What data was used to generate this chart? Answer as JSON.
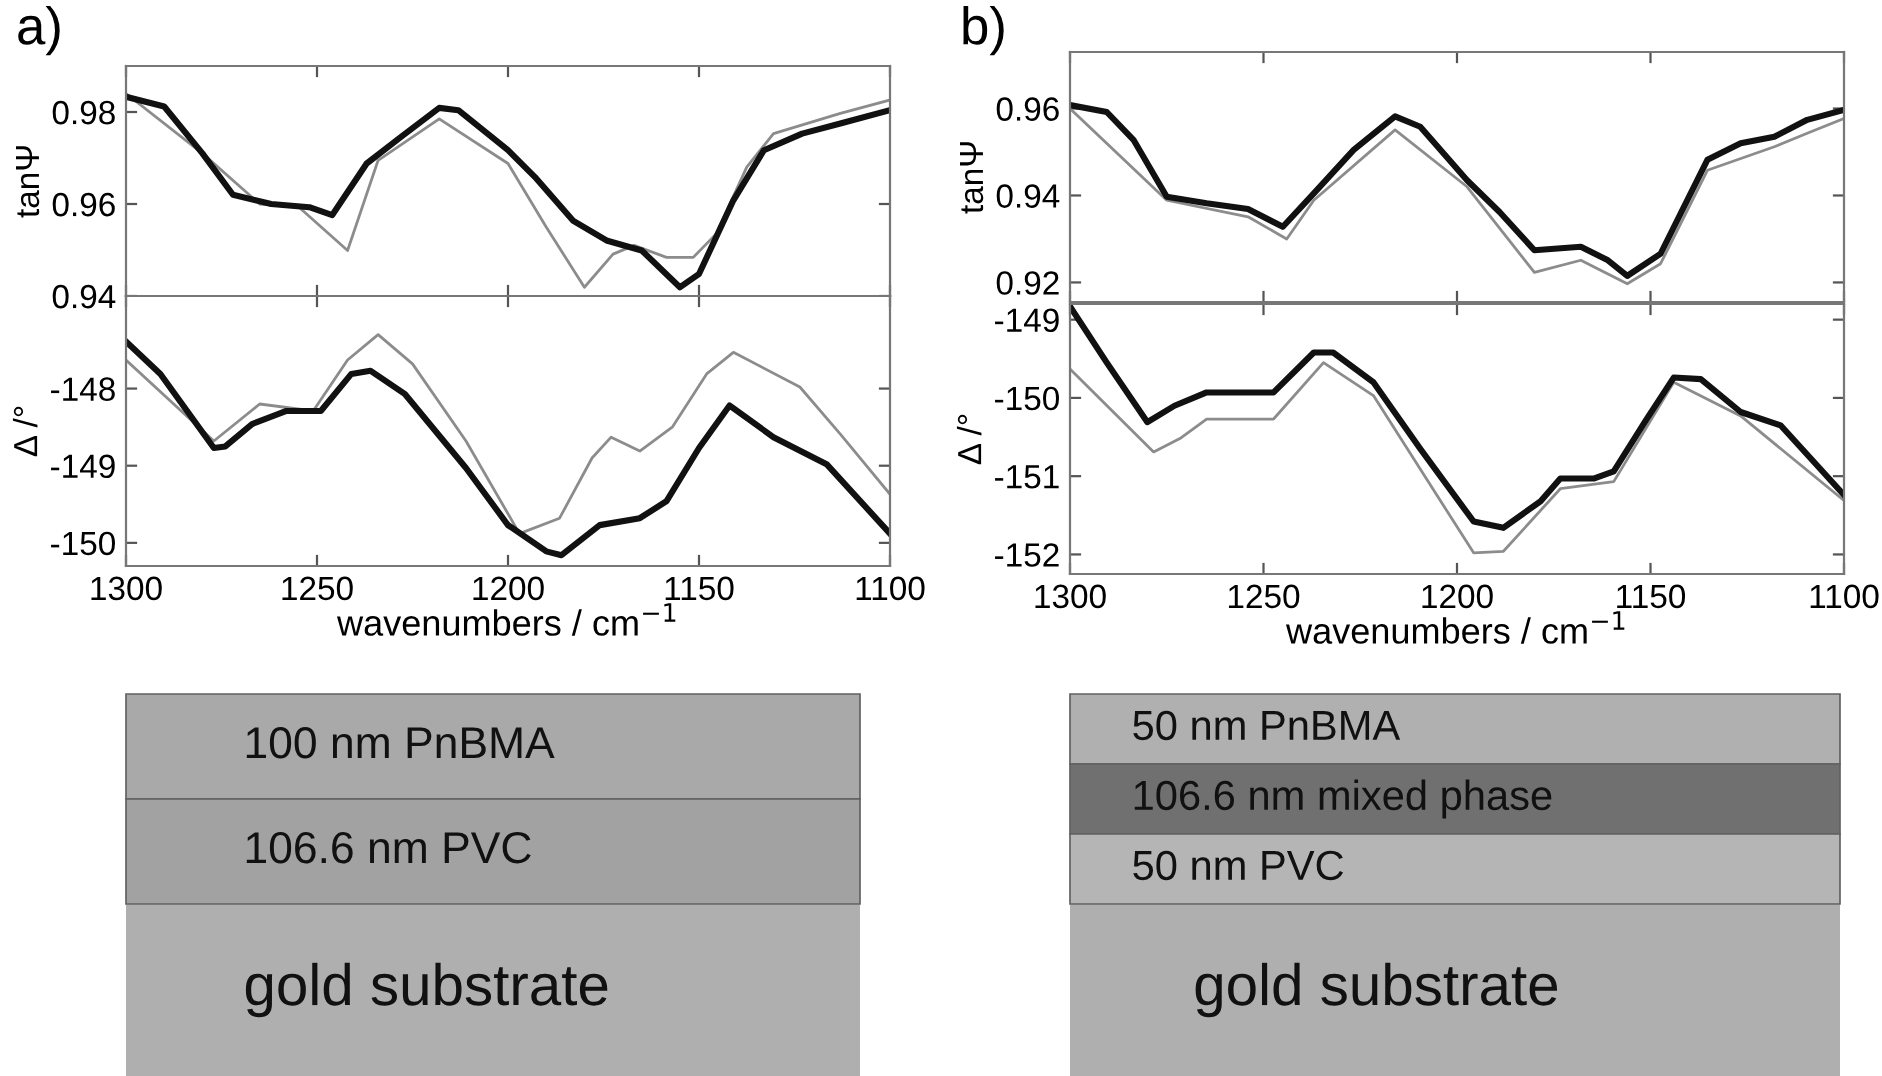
{
  "chart_data": [
    {
      "type": "line",
      "title": "a)",
      "ylabel": "tanΨ",
      "xlim": [
        1300,
        1100
      ],
      "xticks": [
        1300,
        1250,
        1200,
        1150,
        1100
      ],
      "ylim": [
        0.94,
        0.99
      ],
      "yticks": [
        0.94,
        0.96,
        0.98
      ],
      "tick_labels": "y",
      "grid": false,
      "legend": false,
      "series": [
        {
          "color": "#8c8c8c",
          "x": [
            1300,
            1280,
            1265,
            1255,
            1242,
            1234,
            1218,
            1200,
            1190,
            1180,
            1172.5,
            1167,
            1158.5,
            1151.5,
            1145.5,
            1137.5,
            1130.5,
            1113,
            1100
          ],
          "values": [
            0.984,
            0.971,
            0.96,
            0.9595,
            0.9499,
            0.9695,
            0.9785,
            0.9688,
            0.955,
            0.9419,
            0.9491,
            0.951,
            0.9484,
            0.9484,
            0.9535,
            0.968,
            0.9753,
            0.9797,
            0.9826
          ]
        },
        {
          "color": "#111111",
          "x": [
            1300,
            1290,
            1280,
            1272,
            1262,
            1252,
            1246,
            1237,
            1228,
            1218,
            1213,
            1200,
            1193,
            1183,
            1174,
            1165,
            1155,
            1150,
            1141,
            1133,
            1123,
            1113,
            1100
          ],
          "values": [
            0.9833,
            0.9812,
            0.971,
            0.962,
            0.96,
            0.9593,
            0.9576,
            0.9688,
            0.9746,
            0.9809,
            0.9804,
            0.9717,
            0.9659,
            0.9564,
            0.952,
            0.9499,
            0.9419,
            0.9448,
            0.9608,
            0.9717,
            0.9753,
            0.9775,
            0.9804
          ]
        }
      ]
    },
    {
      "type": "line",
      "ylabel": "Δ /°",
      "xlabel": "wavenumbers / cm$^{−1}$",
      "xlim": [
        1300,
        1100
      ],
      "xticks": [
        1300,
        1250,
        1200,
        1150,
        1100
      ],
      "ylim": [
        -150.3,
        -146.8
      ],
      "yticks": [
        -150,
        -149,
        -148
      ],
      "grid": false,
      "legend": false,
      "series": [
        {
          "color": "#8c8c8c",
          "x": [
            1300,
            1277,
            1265,
            1251,
            1242,
            1234,
            1225,
            1211,
            1197,
            1186.5,
            1178,
            1173,
            1165.5,
            1157,
            1148,
            1141,
            1123.6,
            1113,
            1100
          ],
          "values": [
            -147.63,
            -148.68,
            -148.2,
            -148.29,
            -147.63,
            -147.3,
            -147.68,
            -148.68,
            -149.88,
            -149.68,
            -148.9,
            -148.63,
            -148.81,
            -148.5,
            -147.81,
            -147.53,
            -147.98,
            -148.59,
            -149.37
          ]
        },
        {
          "color": "#111111",
          "x": [
            1300,
            1291,
            1277,
            1274,
            1267,
            1258,
            1249,
            1241,
            1236,
            1227,
            1211,
            1200,
            1190,
            1186,
            1176,
            1165.5,
            1158.5,
            1150,
            1142,
            1130.5,
            1116.6,
            1100
          ],
          "values": [
            -147.39,
            -147.81,
            -148.77,
            -148.75,
            -148.46,
            -148.29,
            -148.29,
            -147.81,
            -147.77,
            -148.07,
            -149.03,
            -149.77,
            -150.11,
            -150.16,
            -149.77,
            -149.68,
            -149.46,
            -148.77,
            -148.22,
            -148.63,
            -148.98,
            -149.88
          ]
        }
      ]
    },
    {
      "type": "line",
      "title": "b)",
      "ylabel": "tanΨ",
      "xlim": [
        1300,
        1100
      ],
      "xticks": [
        1300,
        1250,
        1200,
        1150,
        1100
      ],
      "ylim": [
        0.9155,
        0.973
      ],
      "yticks": [
        0.92,
        0.94,
        0.96
      ],
      "tick_labels": "y",
      "grid": false,
      "legend": false,
      "series": [
        {
          "color": "#8c8c8c",
          "x": [
            1300,
            1275,
            1254,
            1244,
            1237,
            1216,
            1197.4,
            1180,
            1168,
            1156,
            1147.4,
            1135.3,
            1118,
            1109.5,
            1100
          ],
          "values": [
            0.96,
            0.9389,
            0.9351,
            0.93,
            0.9389,
            0.9551,
            0.942,
            0.9223,
            0.9251,
            0.9197,
            0.9243,
            0.9458,
            0.9512,
            0.9543,
            0.9577
          ]
        },
        {
          "color": "#111111",
          "x": [
            1300,
            1290.5,
            1283.6,
            1275,
            1264.7,
            1254,
            1245,
            1237,
            1226.7,
            1216,
            1209.5,
            1197.4,
            1189,
            1180,
            1168,
            1161,
            1156,
            1147.4,
            1135.3,
            1126.7,
            1118,
            1109.5,
            1100
          ],
          "values": [
            0.9608,
            0.9592,
            0.9528,
            0.9397,
            0.9382,
            0.9369,
            0.9328,
            0.9405,
            0.9505,
            0.9582,
            0.9558,
            0.9435,
            0.9362,
            0.9274,
            0.9282,
            0.9251,
            0.9215,
            0.9266,
            0.9482,
            0.952,
            0.9535,
            0.9574,
            0.9597
          ]
        }
      ]
    },
    {
      "type": "line",
      "ylabel": "Δ /°",
      "xlabel": "wavenumbers / cm$^{−1}$",
      "xlim": [
        1300,
        1100
      ],
      "xticks": [
        1300,
        1250,
        1200,
        1150,
        1100
      ],
      "ylim": [
        -152.25,
        -148.8
      ],
      "yticks": [
        -152,
        -151,
        -150,
        -149
      ],
      "grid": false,
      "legend": false,
      "series": [
        {
          "color": "#8c8c8c",
          "x": [
            1300,
            1278.4,
            1271.6,
            1264.7,
            1247.4,
            1234.5,
            1221.6,
            1195.7,
            1188,
            1173.3,
            1159.5,
            1144,
            1126.7,
            1100
          ],
          "values": [
            -149.63,
            -150.69,
            -150.52,
            -150.27,
            -150.27,
            -149.55,
            -149.97,
            -151.98,
            -151.96,
            -151.16,
            -151.07,
            -149.8,
            -150.23,
            -151.31
          ]
        },
        {
          "color": "#111111",
          "x": [
            1300,
            1290.5,
            1280,
            1273,
            1264.7,
            1254,
            1247.4,
            1237,
            1232,
            1221.6,
            1209.5,
            1195.7,
            1188,
            1178.4,
            1173.3,
            1164.7,
            1159.5,
            1151,
            1144,
            1137,
            1126.7,
            1116.4,
            1100
          ],
          "values": [
            -148.83,
            -149.55,
            -150.31,
            -150.1,
            -149.93,
            -149.93,
            -149.93,
            -149.42,
            -149.42,
            -149.8,
            -150.65,
            -151.58,
            -151.66,
            -151.32,
            -151.03,
            -151.03,
            -150.94,
            -150.27,
            -149.74,
            -149.76,
            -150.18,
            -150.35,
            -151.24
          ]
        }
      ]
    },
    {
      "type": "other",
      "annotations": [
        "100 nm PnBMA",
        "106.6 nm PVC",
        "gold substrate"
      ],
      "colors": [
        "#a9a9a9",
        "#a2a2a2",
        "#6e6e6e"
      ]
    },
    {
      "type": "other",
      "annotations": [
        "50 nm PnBMA",
        "106.6 nm mixed phase",
        "50 nm PVC",
        "gold substrate"
      ],
      "colors": [
        "#b0b0b0",
        "#707070",
        "#b5b5b5",
        "#6e6e6e"
      ]
    }
  ]
}
